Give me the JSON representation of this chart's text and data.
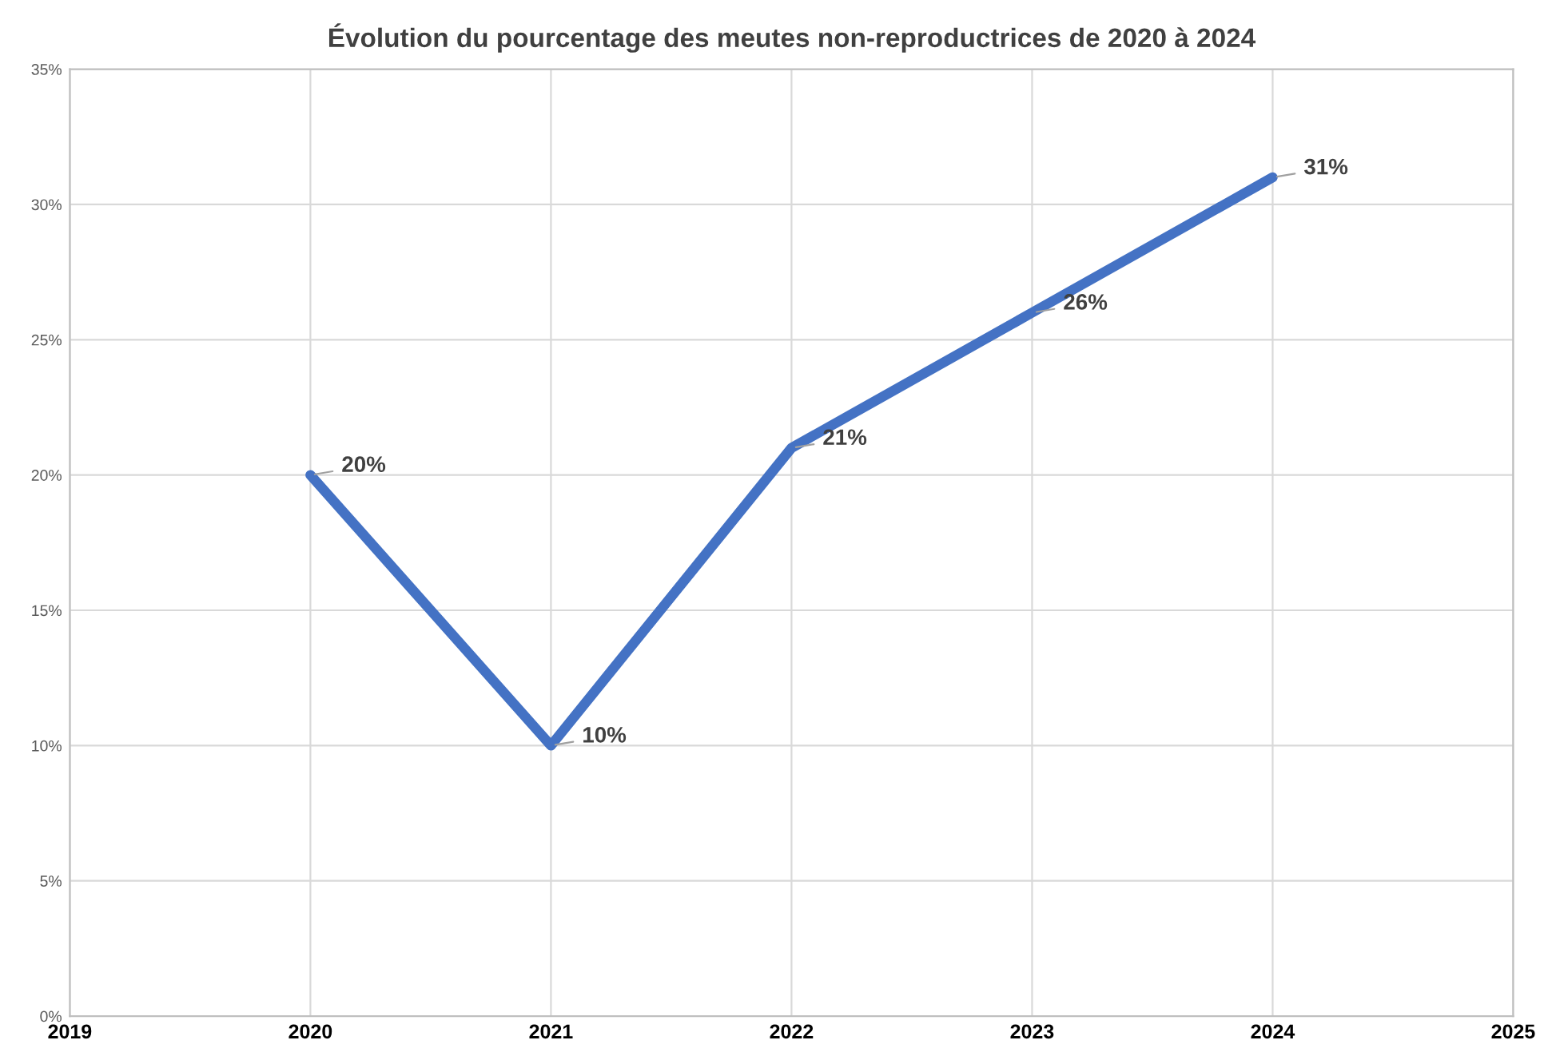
{
  "chart_data": {
    "type": "line",
    "title": "Évolution du pourcentage des meutes non-reproductrices de 2020 à 2024",
    "x": [
      2020,
      2021,
      2022,
      2023,
      2024
    ],
    "values": [
      20,
      10,
      21,
      26,
      31
    ],
    "value_labels": [
      "20%",
      "10%",
      "21%",
      "26%",
      "31%"
    ],
    "color": "#4472c4",
    "xlim": [
      2019,
      2025
    ],
    "xticks": [
      2019,
      2020,
      2021,
      2022,
      2023,
      2024,
      2025
    ],
    "ylim": [
      0,
      35
    ],
    "yticks": [
      {
        "value": 0,
        "label": "0%"
      },
      {
        "value": 5,
        "label": "5%"
      },
      {
        "value": 10,
        "label": "10%"
      },
      {
        "value": 15,
        "label": "15%"
      },
      {
        "value": 20,
        "label": "20%"
      },
      {
        "value": 25,
        "label": "25%"
      },
      {
        "value": 30,
        "label": "30%"
      },
      {
        "value": 35,
        "label": "35%"
      }
    ],
    "grid": true,
    "marker": "none",
    "line_style": "solid"
  }
}
